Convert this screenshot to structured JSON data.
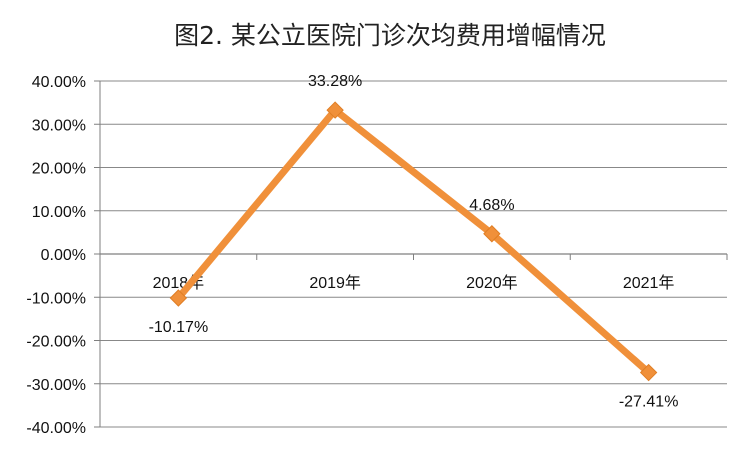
{
  "chart_data": {
    "type": "line",
    "title": "图2. 某公立医院门诊次均费用增幅情况",
    "categories": [
      "2018年",
      "2019年",
      "2020年",
      "2021年"
    ],
    "series": [
      {
        "values": [
          -10.17,
          33.28,
          4.68,
          -27.41
        ],
        "labels": [
          "-10.17%",
          "33.28%",
          "4.68%",
          "-27.41%"
        ],
        "color": "#f0903a"
      }
    ],
    "ylim": [
      -40,
      40
    ],
    "yticks": [
      40,
      30,
      20,
      10,
      0,
      -10,
      -20,
      -30,
      -40
    ],
    "ytick_labels": [
      "40.00%",
      "30.00%",
      "20.00%",
      "10.00%",
      "0.00%",
      "-10.00%",
      "-20.00%",
      "-30.00%",
      "-40.00%"
    ],
    "grid": true,
    "legend": "none",
    "gridline_color": "#888888",
    "axis_color": "#7f7f7f"
  }
}
